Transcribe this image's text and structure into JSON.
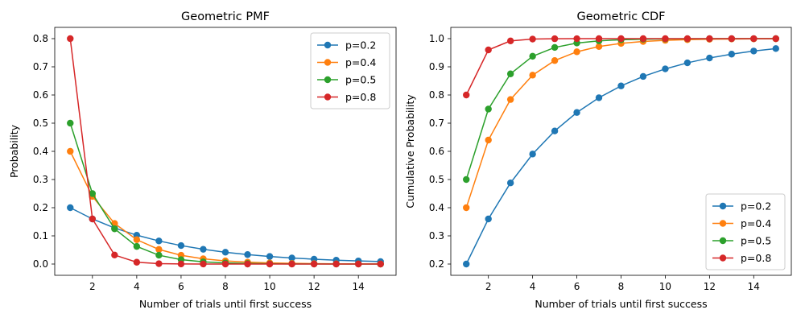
{
  "chart_data": [
    {
      "type": "line",
      "title": "Geometric PMF",
      "xlabel": "Number of trials until first success",
      "ylabel": "Probability",
      "xlim": [
        0.3,
        15.7
      ],
      "ylim": [
        -0.04,
        0.84
      ],
      "xticks": [
        2,
        4,
        6,
        8,
        10,
        12,
        14
      ],
      "yticks": [
        0.0,
        0.1,
        0.2,
        0.3,
        0.4,
        0.5,
        0.6,
        0.7,
        0.8
      ],
      "legend_position": "top-right",
      "grid": false,
      "x": [
        1,
        2,
        3,
        4,
        5,
        6,
        7,
        8,
        9,
        10,
        11,
        12,
        13,
        14,
        15
      ],
      "series": [
        {
          "name": "p=0.2",
          "color": "#1f77b4",
          "values": [
            0.2,
            0.16,
            0.128,
            0.1024,
            0.0819,
            0.0655,
            0.0524,
            0.0419,
            0.0336,
            0.0268,
            0.0215,
            0.0172,
            0.0137,
            0.011,
            0.0088
          ]
        },
        {
          "name": "p=0.4",
          "color": "#ff7f0e",
          "values": [
            0.4,
            0.24,
            0.144,
            0.0864,
            0.0518,
            0.0311,
            0.0187,
            0.0112,
            0.0067,
            0.004,
            0.0024,
            0.0015,
            0.0009,
            0.0005,
            0.0003
          ]
        },
        {
          "name": "p=0.5",
          "color": "#2ca02c",
          "values": [
            0.5,
            0.25,
            0.125,
            0.0625,
            0.0313,
            0.0156,
            0.0078,
            0.0039,
            0.002,
            0.001,
            0.0005,
            0.0002,
            0.0001,
            0.0001,
            0.0
          ]
        },
        {
          "name": "p=0.8",
          "color": "#d62728",
          "values": [
            0.8,
            0.16,
            0.032,
            0.0064,
            0.0013,
            0.0003,
            0.0001,
            0.0,
            0.0,
            0.0,
            0.0,
            0.0,
            0.0,
            0.0,
            0.0
          ]
        }
      ]
    },
    {
      "type": "line",
      "title": "Geometric CDF",
      "xlabel": "Number of trials until first success",
      "ylabel": "Cumulative Probability",
      "xlim": [
        0.3,
        15.7
      ],
      "ylim": [
        0.16,
        1.04
      ],
      "xticks": [
        2,
        4,
        6,
        8,
        10,
        12,
        14
      ],
      "yticks": [
        0.2,
        0.3,
        0.4,
        0.5,
        0.6,
        0.7,
        0.8,
        0.9,
        1.0
      ],
      "legend_position": "bottom-right",
      "grid": false,
      "x": [
        1,
        2,
        3,
        4,
        5,
        6,
        7,
        8,
        9,
        10,
        11,
        12,
        13,
        14,
        15
      ],
      "series": [
        {
          "name": "p=0.2",
          "color": "#1f77b4",
          "values": [
            0.2,
            0.36,
            0.488,
            0.5904,
            0.6723,
            0.7379,
            0.7903,
            0.8322,
            0.8658,
            0.8926,
            0.9141,
            0.9313,
            0.945,
            0.956,
            0.9648
          ]
        },
        {
          "name": "p=0.4",
          "color": "#ff7f0e",
          "values": [
            0.4,
            0.64,
            0.784,
            0.8704,
            0.9222,
            0.9533,
            0.972,
            0.9832,
            0.9899,
            0.994,
            0.9964,
            0.9978,
            0.9987,
            0.9992,
            0.9995
          ]
        },
        {
          "name": "p=0.5",
          "color": "#2ca02c",
          "values": [
            0.5,
            0.75,
            0.875,
            0.9375,
            0.9688,
            0.9844,
            0.9922,
            0.9961,
            0.998,
            0.999,
            0.9995,
            0.9998,
            0.9999,
            0.9999,
            1.0
          ]
        },
        {
          "name": "p=0.8",
          "color": "#d62728",
          "values": [
            0.8,
            0.96,
            0.992,
            0.9984,
            0.9997,
            0.9999,
            1.0,
            1.0,
            1.0,
            1.0,
            1.0,
            1.0,
            1.0,
            1.0,
            1.0
          ]
        }
      ]
    }
  ]
}
